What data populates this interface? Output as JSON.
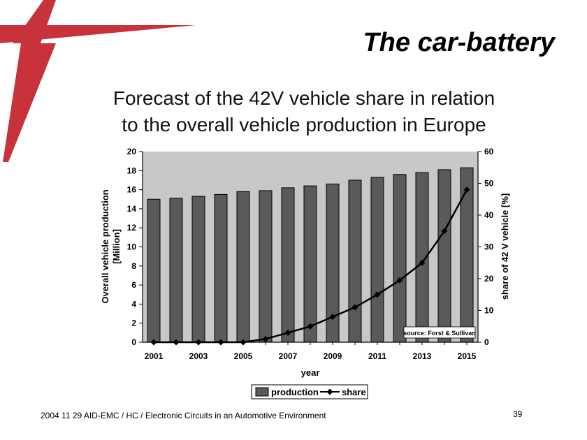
{
  "slide": {
    "title": "The car-battery",
    "subtitle_line1": "Forecast of the 42V vehicle share in relation",
    "subtitle_line2": "to the overall vehicle production in Europe",
    "footer": "2004 11 29 AID-EMC / HC / Electronic Circuits in an Automotive Environment",
    "page_number": "39",
    "accent_color": "#c8323a"
  },
  "chart_data": {
    "type": "bar",
    "title": "",
    "xlabel": "year",
    "ylabel": "Overall vehicle production [Million]",
    "ylabel_line1": "Overall vehicle production",
    "ylabel_line2": "[Million]",
    "y2label": "share of 42 V vehicle [%]",
    "ylim": [
      0,
      20
    ],
    "y2lim": [
      0,
      60
    ],
    "yticks": [
      0,
      2,
      4,
      6,
      8,
      10,
      12,
      14,
      16,
      18,
      20
    ],
    "y2ticks": [
      0,
      10,
      20,
      30,
      40,
      50,
      60
    ],
    "categories": [
      "2001",
      "2002",
      "2003",
      "2004",
      "2005",
      "2006",
      "2007",
      "2008",
      "2009",
      "2010",
      "2011",
      "2012",
      "2013",
      "2014",
      "2015"
    ],
    "xtick_labels": [
      "2001",
      "2003",
      "2005",
      "2007",
      "2009",
      "2011",
      "2013",
      "2015"
    ],
    "series": [
      {
        "name": "production",
        "type": "bar",
        "axis": "left",
        "values": [
          15.0,
          15.1,
          15.3,
          15.5,
          15.8,
          15.9,
          16.2,
          16.4,
          16.6,
          17.0,
          17.3,
          17.6,
          17.8,
          18.1,
          18.3
        ]
      },
      {
        "name": "share",
        "type": "line",
        "axis": "right",
        "values": [
          0,
          0,
          0,
          0,
          0,
          1,
          3,
          5,
          8,
          11,
          15,
          19.5,
          25,
          35,
          48
        ]
      }
    ],
    "annotation": "source: Forst & Sullivan",
    "legend": [
      "production",
      "share"
    ],
    "legend_position": "bottom",
    "grid": false,
    "colors": {
      "bar": "#5a5a5a",
      "plot_bg": "#c8c8c8",
      "line": "#000000"
    }
  }
}
